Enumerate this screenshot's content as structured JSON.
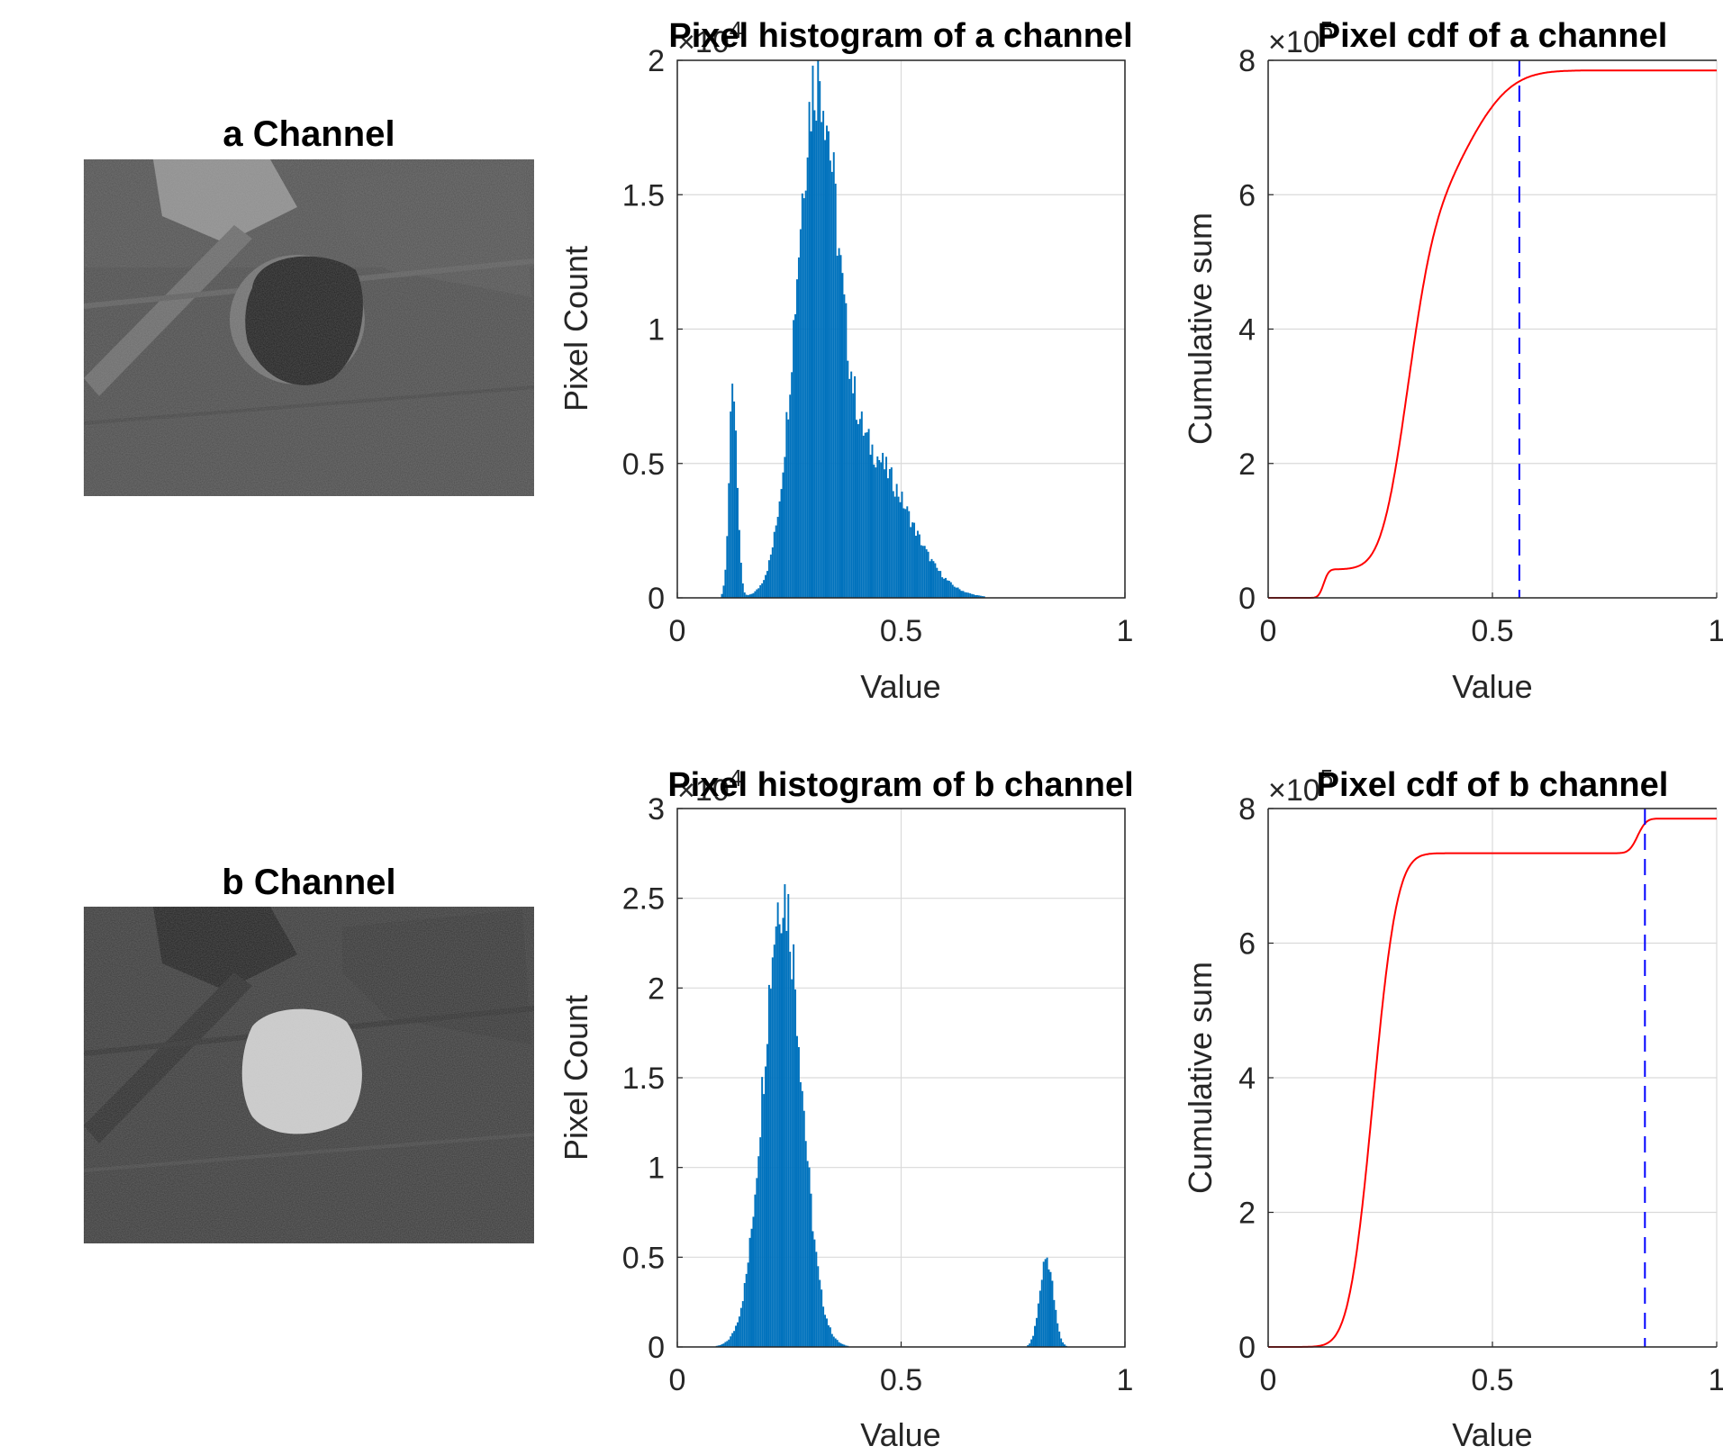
{
  "images": [
    {
      "title": "a Channel"
    },
    {
      "title": "b Channel"
    }
  ],
  "colors": {
    "histogram_bars": "#0072BD",
    "cdf_line": "#FF0000",
    "threshold_line": "#0000FF",
    "grid": "#DADADA",
    "axis": "#262626"
  },
  "chart_data": [
    {
      "type": "bar",
      "title": "Pixel histogram of a channel",
      "xlabel": "Value",
      "ylabel": "Pixel Count",
      "exponent_label": "×10",
      "exponent_power": "4",
      "xlim": [
        0,
        1
      ],
      "ylim": [
        0,
        2
      ],
      "xticks": [
        "0",
        "0.5",
        "1"
      ],
      "yticks": [
        "0",
        "0.5",
        "1",
        "1.5",
        "2"
      ],
      "grid": true,
      "components": [
        {
          "mu": 0.125,
          "sigma": 0.009,
          "amp": 0.78
        },
        {
          "mu": 0.31,
          "sigma": 0.045,
          "amp": 1.76
        },
        {
          "mu": 0.43,
          "sigma": 0.085,
          "amp": 0.52
        }
      ]
    },
    {
      "type": "line",
      "title": "Pixel cdf of a channel",
      "xlabel": "Value",
      "ylabel": "Cumulative sum",
      "exponent_label": "×10",
      "exponent_power": "5",
      "xlim": [
        0,
        1
      ],
      "ylim": [
        0,
        8
      ],
      "xticks": [
        "0",
        "0.5",
        "1"
      ],
      "yticks": [
        "0",
        "2",
        "4",
        "6",
        "8"
      ],
      "grid": true,
      "total": 7.85,
      "threshold_x": 0.56,
      "components": [
        {
          "mu": 0.125,
          "sigma": 0.009,
          "amp": 0.78
        },
        {
          "mu": 0.31,
          "sigma": 0.045,
          "amp": 1.76
        },
        {
          "mu": 0.43,
          "sigma": 0.085,
          "amp": 0.52
        }
      ]
    },
    {
      "type": "bar",
      "title": "Pixel histogram of b channel",
      "xlabel": "Value",
      "ylabel": "Pixel Count",
      "exponent_label": "×10",
      "exponent_power": "4",
      "xlim": [
        0,
        1
      ],
      "ylim": [
        0,
        3
      ],
      "xticks": [
        "0",
        "0.5",
        "1"
      ],
      "yticks": [
        "0",
        "0.5",
        "1",
        "1.5",
        "2",
        "2.5",
        "3"
      ],
      "grid": true,
      "components": [
        {
          "mu": 0.235,
          "sigma": 0.042,
          "amp": 2.55
        },
        {
          "mu": 0.825,
          "sigma": 0.015,
          "amp": 0.5
        }
      ]
    },
    {
      "type": "line",
      "title": "Pixel cdf of b channel",
      "xlabel": "Value",
      "ylabel": "Cumulative sum",
      "exponent_label": "×10",
      "exponent_power": "5",
      "xlim": [
        0,
        1
      ],
      "ylim": [
        0,
        8
      ],
      "xticks": [
        "0",
        "0.5",
        "1"
      ],
      "yticks": [
        "0",
        "2",
        "4",
        "6",
        "8"
      ],
      "grid": true,
      "total": 7.85,
      "threshold_x": 0.84,
      "components": [
        {
          "mu": 0.235,
          "sigma": 0.042,
          "amp": 2.55
        },
        {
          "mu": 0.825,
          "sigma": 0.015,
          "amp": 0.5
        }
      ]
    }
  ]
}
